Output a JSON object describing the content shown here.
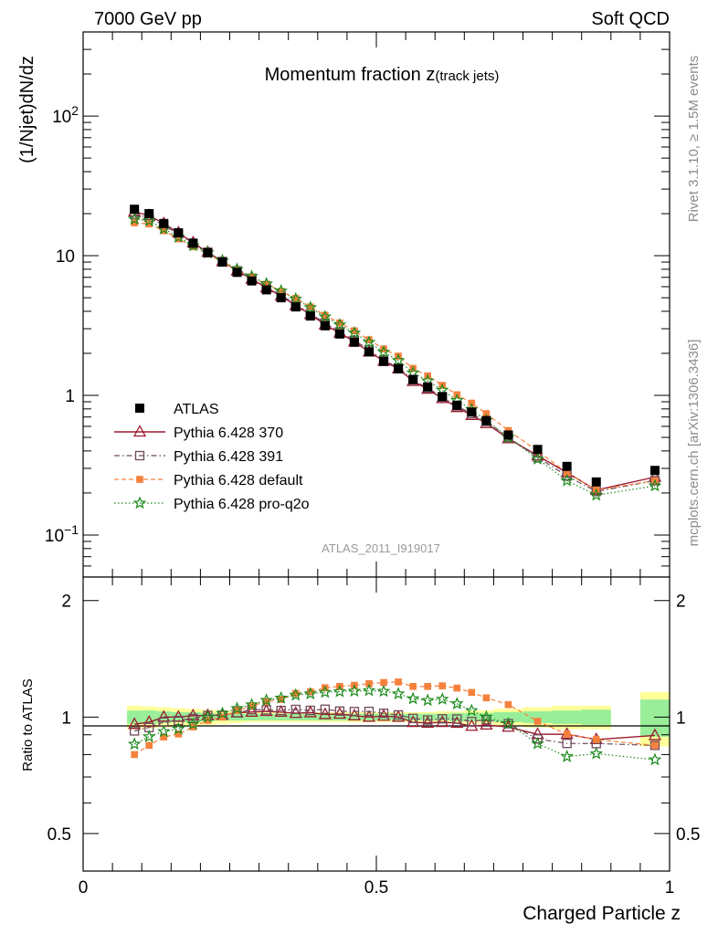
{
  "header": {
    "energy_label": "7000 GeV pp",
    "process_label": "Soft QCD"
  },
  "side_text": {
    "rivet": "Rivet 3.1.10, ≥ 1.5M events",
    "source": "mcplots.cern.ch [arXiv:1306.3436]"
  },
  "chart_data": {
    "type": "scatter",
    "title": "Momentum fraction ",
    "title_var": "z",
    "title_sub": "(track jets)",
    "watermark": "ATLAS_2011_I919017",
    "xlabel": "Charged Particle z",
    "ylabel": "(1/Njet)dN/dz",
    "ratio_ylabel": "Ratio to ATLAS",
    "xlim": [
      0,
      1
    ],
    "ylim": [
      0.05,
      400
    ],
    "ratio_ylim": [
      0.4,
      2.3
    ],
    "x_ticks": [
      {
        "v": 0,
        "label": "0"
      },
      {
        "v": 0.5,
        "label": "0.5"
      },
      {
        "v": 1,
        "label": "1"
      }
    ],
    "y_ticks": [
      {
        "v": 0.1,
        "base": "10",
        "exp": "−1"
      },
      {
        "v": 1,
        "base": "1",
        "exp": ""
      },
      {
        "v": 10,
        "base": "10",
        "exp": ""
      },
      {
        "v": 100,
        "base": "10",
        "exp": "2"
      }
    ],
    "ratio_ticks": [
      {
        "v": 0.5,
        "label": "0.5"
      },
      {
        "v": 1,
        "label": "1"
      },
      {
        "v": 2,
        "label": "2"
      }
    ],
    "x": [
      0.0875,
      0.1125,
      0.1375,
      0.1625,
      0.1875,
      0.2125,
      0.2375,
      0.2625,
      0.2875,
      0.3125,
      0.3375,
      0.3625,
      0.3875,
      0.4125,
      0.4375,
      0.4625,
      0.4875,
      0.5125,
      0.5375,
      0.5625,
      0.5875,
      0.6125,
      0.6375,
      0.6625,
      0.6875,
      0.725,
      0.775,
      0.825,
      0.875,
      0.975
    ],
    "band_edges": [
      0.075,
      0.1,
      0.125,
      0.15,
      0.175,
      0.2,
      0.225,
      0.25,
      0.275,
      0.3,
      0.325,
      0.35,
      0.375,
      0.4,
      0.425,
      0.45,
      0.475,
      0.5,
      0.525,
      0.55,
      0.575,
      0.6,
      0.625,
      0.65,
      0.675,
      0.7,
      0.75,
      0.8,
      0.85,
      0.9,
      0.95,
      1.0
    ],
    "band_inner": [
      0.04,
      0.04,
      0.035,
      0.03,
      0.03,
      0.025,
      0.02,
      0.02,
      0.02,
      0.02,
      0.02,
      0.02,
      0.02,
      0.02,
      0.02,
      0.02,
      0.02,
      0.02,
      0.02,
      0.02,
      0.02,
      0.02,
      0.025,
      0.025,
      0.025,
      0.03,
      0.035,
      0.04,
      0.045,
      null,
      0.11
    ],
    "band_outer": [
      0.07,
      0.065,
      0.06,
      0.055,
      0.05,
      0.045,
      0.04,
      0.035,
      0.03,
      0.03,
      0.03,
      0.03,
      0.03,
      0.03,
      0.03,
      0.03,
      0.03,
      0.03,
      0.03,
      0.03,
      0.03,
      0.035,
      0.035,
      0.04,
      0.04,
      0.05,
      0.06,
      0.07,
      0.07,
      null,
      0.16
    ],
    "series": [
      {
        "name": "ATLAS",
        "color": "#000000",
        "marker": "filled-square",
        "line": "none",
        "values": [
          21.5,
          20.0,
          17.0,
          14.6,
          12.3,
          10.5,
          9.0,
          7.6,
          6.6,
          5.7,
          5.0,
          4.3,
          3.7,
          3.15,
          2.75,
          2.4,
          2.05,
          1.75,
          1.55,
          1.3,
          1.15,
          0.98,
          0.85,
          0.76,
          0.66,
          0.52,
          0.41,
          0.31,
          0.24,
          0.29
        ]
      },
      {
        "name": "Pythia 6.428 370",
        "color": "#9b1b30",
        "marker": "open-triangle",
        "line": "solid",
        "values": [
          20.6,
          19.4,
          17.0,
          14.6,
          12.4,
          10.6,
          9.1,
          7.8,
          6.8,
          5.9,
          5.15,
          4.4,
          3.8,
          3.2,
          2.8,
          2.42,
          2.05,
          1.76,
          1.55,
          1.26,
          1.11,
          0.95,
          0.82,
          0.72,
          0.63,
          0.49,
          0.37,
          0.28,
          0.21,
          0.26
        ]
      },
      {
        "name": "Pythia 6.428 391",
        "color": "#6e4a5a",
        "marker": "open-square",
        "line": "dashdot",
        "values": [
          19.8,
          18.8,
          16.5,
          14.3,
          12.2,
          10.6,
          9.1,
          7.8,
          6.9,
          5.95,
          5.2,
          4.5,
          3.85,
          3.3,
          2.85,
          2.48,
          2.12,
          1.79,
          1.57,
          1.29,
          1.13,
          0.97,
          0.84,
          0.74,
          0.65,
          0.5,
          0.36,
          0.265,
          0.205,
          0.245
        ]
      },
      {
        "name": "Pythia 6.428 default",
        "color": "#f5813c",
        "marker": "filled-square-small",
        "line": "dashed",
        "values": [
          17.2,
          16.9,
          15.1,
          13.2,
          11.6,
          10.3,
          9.0,
          7.9,
          7.05,
          6.25,
          5.55,
          4.95,
          4.3,
          3.75,
          3.3,
          2.9,
          2.5,
          2.15,
          1.91,
          1.56,
          1.38,
          1.18,
          1.01,
          0.88,
          0.74,
          0.56,
          0.4,
          0.28,
          0.21,
          0.245
        ]
      },
      {
        "name": "Pythia 6.428 pro-q2o",
        "color": "#1b8a1b",
        "marker": "open-star",
        "line": "dotted",
        "values": [
          18.3,
          17.8,
          15.6,
          13.6,
          11.8,
          10.5,
          9.2,
          8.0,
          7.1,
          6.3,
          5.6,
          4.9,
          4.25,
          3.65,
          3.2,
          2.8,
          2.4,
          2.04,
          1.78,
          1.45,
          1.27,
          1.09,
          0.92,
          0.79,
          0.66,
          0.5,
          0.35,
          0.245,
          0.193,
          0.225
        ]
      }
    ]
  }
}
